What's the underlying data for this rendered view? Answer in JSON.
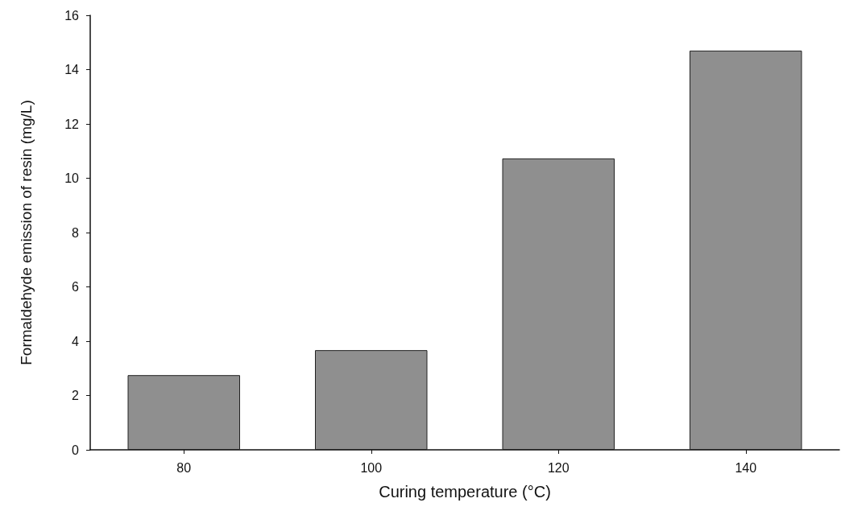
{
  "chart_data": {
    "type": "bar",
    "xlabel": "Curing temperature (°C)",
    "ylabel": "Formaldehyde emission of resin (mg/L)",
    "categories": [
      "80",
      "100",
      "120",
      "140"
    ],
    "values": [
      2.75,
      3.67,
      10.73,
      14.7
    ],
    "color": "#8f8f8f",
    "ylim": [
      0,
      16
    ],
    "yticks": [
      0,
      2,
      4,
      6,
      8,
      10,
      12,
      14,
      16
    ],
    "grid": false
  }
}
